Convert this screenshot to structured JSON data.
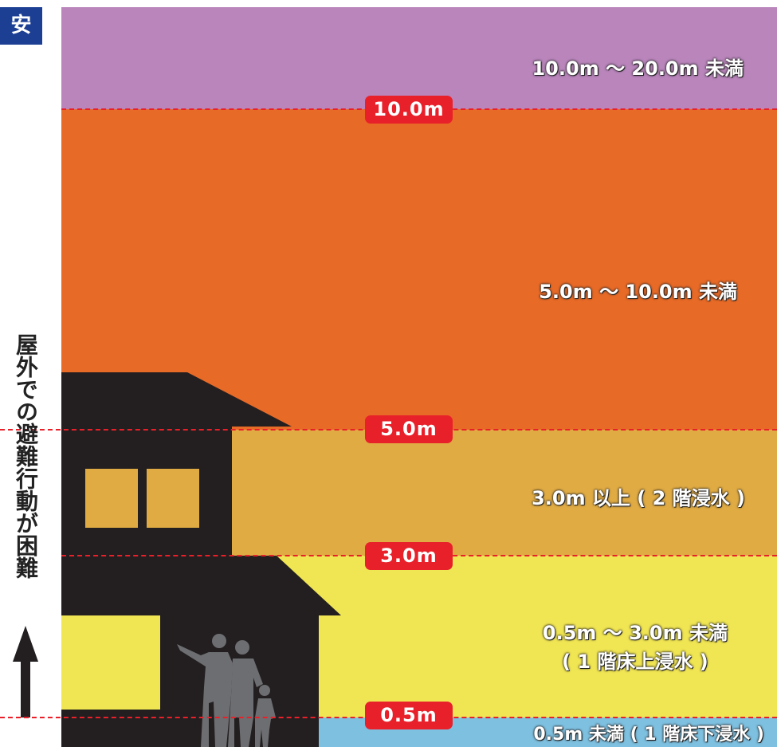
{
  "corner_badge": "安",
  "side_caption": "屋外での避難行動が困難",
  "bands": {
    "b1": "10.0m 〜 20.0m 未満",
    "b2": "5.0m 〜 10.0m 未満",
    "b3": "3.0m 以上 ( 2 階浸水 )",
    "b4_line1": "0.5m 〜 3.0m 未満",
    "b4_line2": "( 1 階床上浸水 )",
    "b5": "0.5m 未満 ( 1 階床下浸水 )"
  },
  "levels": {
    "l10": "10.0m",
    "l5": "5.0m",
    "l3": "3.0m",
    "l05": "0.5m"
  },
  "colors": {
    "band1": "#b985bb",
    "band2": "#e86a27",
    "band3": "#e0ab43",
    "band4": "#f0e553",
    "band5": "#7ec0e0",
    "level_line": "#e8202a",
    "house": "#231f20"
  }
}
